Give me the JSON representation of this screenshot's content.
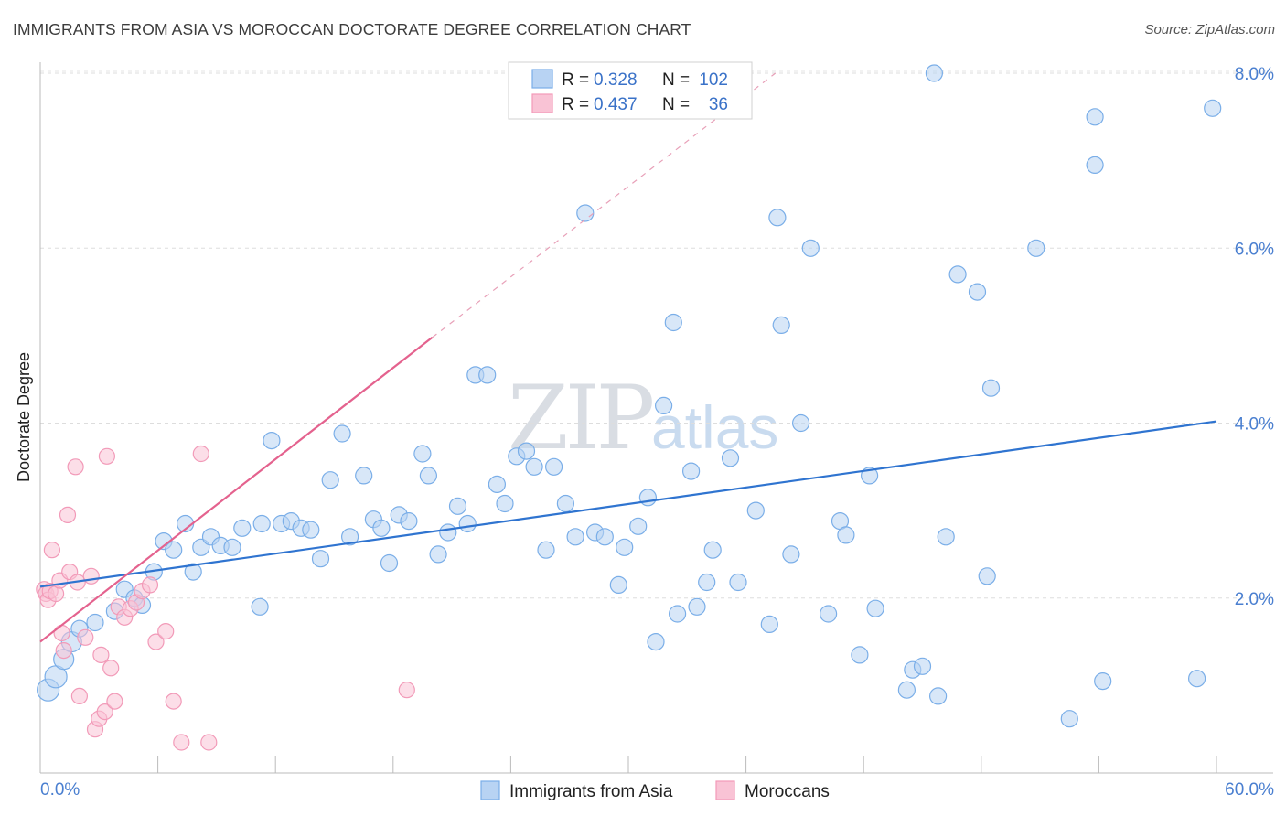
{
  "title": "IMMIGRANTS FROM ASIA VS MOROCCAN DOCTORATE DEGREE CORRELATION CHART",
  "source": "Source: ZipAtlas.com",
  "chart_data": {
    "type": "scatter",
    "title": "IMMIGRANTS FROM ASIA VS MOROCCAN DOCTORATE DEGREE CORRELATION CHART",
    "xlabel": "",
    "ylabel": "Doctorate Degree",
    "xlim": [
      0,
      60
    ],
    "ylim": [
      0,
      8.3
    ],
    "x_tick_labels": [
      "0.0%",
      "60.0%"
    ],
    "y_ticks": [
      2,
      4,
      6,
      8
    ],
    "y_tick_labels": [
      "2.0%",
      "4.0%",
      "6.0%",
      "8.0%"
    ],
    "grid": true,
    "watermark": {
      "main": "ZIP",
      "accent": "atlas"
    },
    "legend": [
      {
        "series": "Immigrants from Asia",
        "r_label": "R =",
        "r": "0.328",
        "n_label": "N =",
        "n": "102"
      },
      {
        "series": "Moroccans",
        "r_label": "R =",
        "r": "0.437",
        "n_label": "N =",
        "n": "36"
      }
    ],
    "series": [
      {
        "name": "Immigrants from Asia",
        "color": "#7aaee8",
        "fill": "#b8d3f3",
        "trend": {
          "x": [
            0,
            60
          ],
          "y": [
            2.13,
            4.02
          ],
          "color": "#2f74d0"
        },
        "points": [
          [
            0.4,
            0.95
          ],
          [
            0.8,
            1.1
          ],
          [
            1.2,
            1.3
          ],
          [
            1.6,
            1.5
          ],
          [
            2.0,
            1.65
          ],
          [
            2.8,
            1.72
          ],
          [
            3.8,
            1.85
          ],
          [
            4.3,
            2.1
          ],
          [
            4.8,
            2.0
          ],
          [
            5.2,
            1.92
          ],
          [
            5.8,
            2.3
          ],
          [
            6.3,
            2.65
          ],
          [
            6.8,
            2.55
          ],
          [
            7.4,
            2.85
          ],
          [
            7.8,
            2.3
          ],
          [
            8.2,
            2.58
          ],
          [
            8.7,
            2.7
          ],
          [
            9.2,
            2.6
          ],
          [
            9.8,
            2.58
          ],
          [
            10.3,
            2.8
          ],
          [
            11.2,
            1.9
          ],
          [
            11.3,
            2.85
          ],
          [
            11.8,
            3.8
          ],
          [
            12.3,
            2.85
          ],
          [
            12.8,
            2.88
          ],
          [
            13.3,
            2.8
          ],
          [
            13.8,
            2.78
          ],
          [
            14.3,
            2.45
          ],
          [
            14.8,
            3.35
          ],
          [
            15.4,
            3.88
          ],
          [
            15.8,
            2.7
          ],
          [
            16.5,
            3.4
          ],
          [
            17.0,
            2.9
          ],
          [
            17.4,
            2.8
          ],
          [
            17.8,
            2.4
          ],
          [
            18.3,
            2.95
          ],
          [
            18.8,
            2.88
          ],
          [
            19.5,
            3.65
          ],
          [
            19.8,
            3.4
          ],
          [
            20.3,
            2.5
          ],
          [
            20.8,
            2.75
          ],
          [
            21.3,
            3.05
          ],
          [
            21.8,
            2.85
          ],
          [
            22.2,
            4.55
          ],
          [
            22.8,
            4.55
          ],
          [
            23.3,
            3.3
          ],
          [
            23.7,
            3.08
          ],
          [
            24.3,
            3.62
          ],
          [
            24.8,
            3.68
          ],
          [
            25.2,
            3.5
          ],
          [
            25.8,
            2.55
          ],
          [
            26.2,
            3.5
          ],
          [
            26.8,
            3.08
          ],
          [
            27.3,
            2.7
          ],
          [
            27.8,
            6.4
          ],
          [
            28.3,
            2.75
          ],
          [
            28.8,
            2.7
          ],
          [
            29.5,
            2.15
          ],
          [
            29.8,
            2.58
          ],
          [
            30.5,
            2.82
          ],
          [
            31.0,
            3.15
          ],
          [
            31.4,
            1.5
          ],
          [
            31.8,
            4.2
          ],
          [
            32.3,
            5.15
          ],
          [
            32.5,
            1.82
          ],
          [
            33.2,
            3.45
          ],
          [
            33.5,
            1.9
          ],
          [
            34.0,
            2.18
          ],
          [
            34.3,
            2.55
          ],
          [
            35.2,
            3.6
          ],
          [
            35.6,
            2.18
          ],
          [
            36.5,
            3.0
          ],
          [
            37.2,
            1.7
          ],
          [
            37.6,
            6.35
          ],
          [
            37.8,
            5.12
          ],
          [
            38.3,
            2.5
          ],
          [
            38.8,
            4.0
          ],
          [
            39.3,
            6.0
          ],
          [
            40.2,
            1.82
          ],
          [
            40.8,
            2.88
          ],
          [
            41.1,
            2.72
          ],
          [
            41.8,
            1.35
          ],
          [
            42.3,
            3.4
          ],
          [
            42.6,
            1.88
          ],
          [
            44.2,
            0.95
          ],
          [
            44.5,
            1.18
          ],
          [
            45.0,
            1.22
          ],
          [
            45.6,
            8.0
          ],
          [
            45.8,
            0.88
          ],
          [
            46.2,
            2.7
          ],
          [
            46.8,
            5.7
          ],
          [
            47.8,
            5.5
          ],
          [
            48.3,
            2.25
          ],
          [
            48.5,
            4.4
          ],
          [
            50.8,
            6.0
          ],
          [
            52.5,
            0.62
          ],
          [
            53.8,
            6.95
          ],
          [
            53.8,
            7.5
          ],
          [
            54.2,
            1.05
          ],
          [
            59.0,
            1.08
          ],
          [
            59.8,
            7.6
          ]
        ]
      },
      {
        "name": "Moroccans",
        "color": "#f29ab8",
        "fill": "#f9c3d5",
        "trend": {
          "x": [
            0,
            20
          ],
          "y": [
            1.5,
            4.98
          ],
          "color": "#e4628e"
        },
        "trend_dashed": {
          "x": [
            20,
            37.5
          ],
          "y": [
            4.98,
            8.0
          ],
          "color": "#e8a0b8"
        },
        "points": [
          [
            0.2,
            2.1
          ],
          [
            0.3,
            2.05
          ],
          [
            0.4,
            1.98
          ],
          [
            0.5,
            2.08
          ],
          [
            0.6,
            2.55
          ],
          [
            0.8,
            2.05
          ],
          [
            1.0,
            2.2
          ],
          [
            1.1,
            1.6
          ],
          [
            1.2,
            1.4
          ],
          [
            1.4,
            2.95
          ],
          [
            1.5,
            2.3
          ],
          [
            1.8,
            3.5
          ],
          [
            1.9,
            2.18
          ],
          [
            2.0,
            0.88
          ],
          [
            2.3,
            1.55
          ],
          [
            2.6,
            2.25
          ],
          [
            2.8,
            0.5
          ],
          [
            3.0,
            0.62
          ],
          [
            3.1,
            1.35
          ],
          [
            3.3,
            0.7
          ],
          [
            3.4,
            3.62
          ],
          [
            3.6,
            1.2
          ],
          [
            3.8,
            0.82
          ],
          [
            4.0,
            1.9
          ],
          [
            4.3,
            1.78
          ],
          [
            4.6,
            1.88
          ],
          [
            4.9,
            1.95
          ],
          [
            5.2,
            2.08
          ],
          [
            5.6,
            2.15
          ],
          [
            5.9,
            1.5
          ],
          [
            6.4,
            1.62
          ],
          [
            6.8,
            0.82
          ],
          [
            7.2,
            0.35
          ],
          [
            8.2,
            3.65
          ],
          [
            8.6,
            0.35
          ],
          [
            18.7,
            0.95
          ]
        ]
      }
    ]
  },
  "bottom_legend": [
    "Immigrants from Asia",
    "Moroccans"
  ]
}
